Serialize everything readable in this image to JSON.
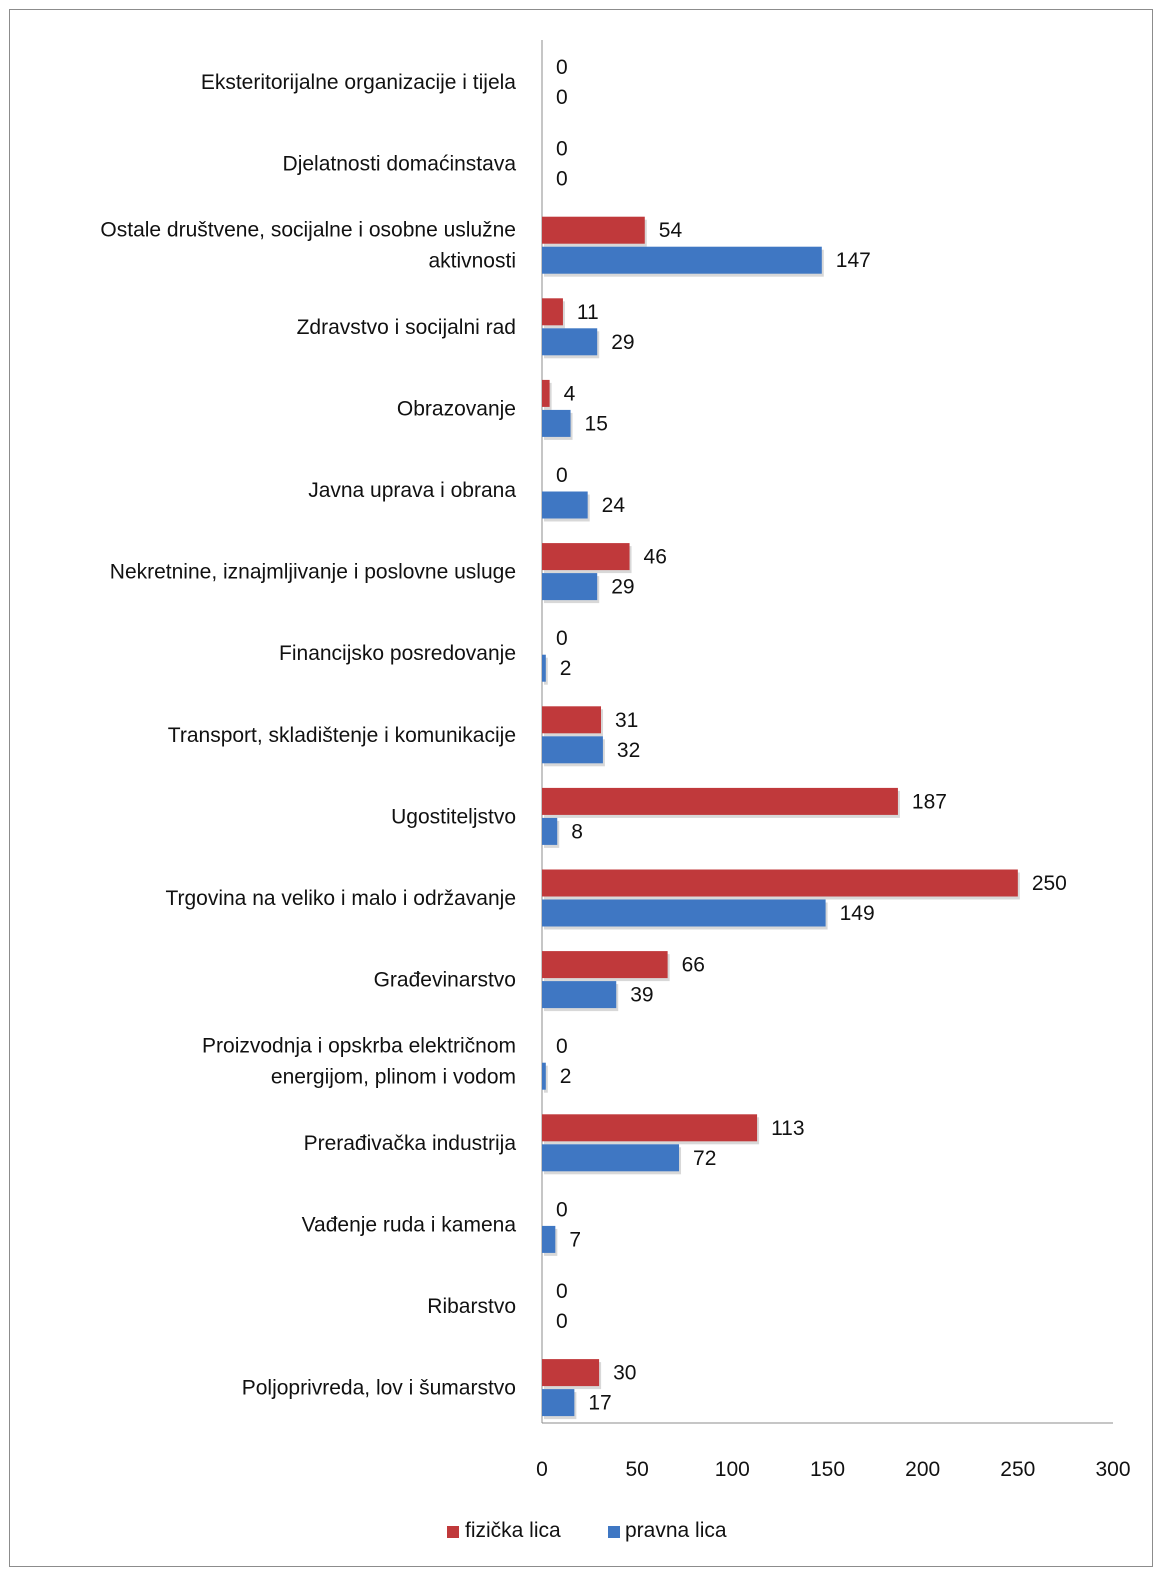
{
  "chart_data": {
    "type": "bar",
    "orientation": "horizontal",
    "categories": [
      "Eksteritorijalne organizacije i tijela",
      "Djelatnosti domaćinstava",
      "Ostale društvene, socijalne i osobne uslužne aktivnosti",
      "Zdravstvo i socijalni rad",
      "Obrazovanje",
      "Javna uprava i obrana",
      "Nekretnine, iznajmljivanje i poslovne usluge",
      "Financijsko posredovanje",
      "Transport, skladištenje i komunikacije",
      "Ugostiteljstvo",
      "Trgovina na veliko i malo i održavanje",
      "Građevinarstvo",
      "Proizvodnja i opskrba električnom energijom, plinom i vodom",
      "Prerađivačka industrija",
      "Vađenje ruda i kamena",
      "Ribarstvo",
      "Poljoprivreda, lov i šumarstvo"
    ],
    "category_lines": [
      [
        "Eksteritorijalne organizacije i tijela"
      ],
      [
        "Djelatnosti domaćinstava"
      ],
      [
        "Ostale društvene, socijalne i osobne uslužne",
        "aktivnosti"
      ],
      [
        "Zdravstvo i socijalni rad"
      ],
      [
        "Obrazovanje"
      ],
      [
        "Javna uprava i obrana"
      ],
      [
        "Nekretnine, iznajmljivanje i poslovne usluge"
      ],
      [
        "Financijsko posredovanje"
      ],
      [
        "Transport, skladištenje i komunikacije"
      ],
      [
        "Ugostiteljstvo"
      ],
      [
        "Trgovina na veliko i malo i održavanje"
      ],
      [
        "Građevinarstvo"
      ],
      [
        "Proizvodnja i opskrba električnom",
        "energijom, plinom i vodom"
      ],
      [
        "Prerađivačka industrija"
      ],
      [
        "Vađenje ruda i kamena"
      ],
      [
        "Ribarstvo"
      ],
      [
        "Poljoprivreda, lov i šumarstvo"
      ]
    ],
    "series": [
      {
        "name": "fizička lica",
        "color": "#c0393b",
        "values": [
          0,
          0,
          54,
          11,
          4,
          0,
          46,
          0,
          31,
          187,
          250,
          66,
          0,
          113,
          0,
          0,
          30
        ]
      },
      {
        "name": "pravna lica",
        "color": "#3f77c3",
        "values": [
          0,
          0,
          147,
          29,
          15,
          24,
          29,
          2,
          32,
          8,
          149,
          39,
          2,
          72,
          7,
          0,
          17
        ]
      }
    ],
    "xlim": [
      0,
      300
    ],
    "xticks": [
      "0",
      "50",
      "100",
      "150",
      "200",
      "250",
      "300"
    ],
    "grid": false,
    "legend_position": "bottom",
    "title": "",
    "xlabel": "",
    "ylabel": ""
  }
}
